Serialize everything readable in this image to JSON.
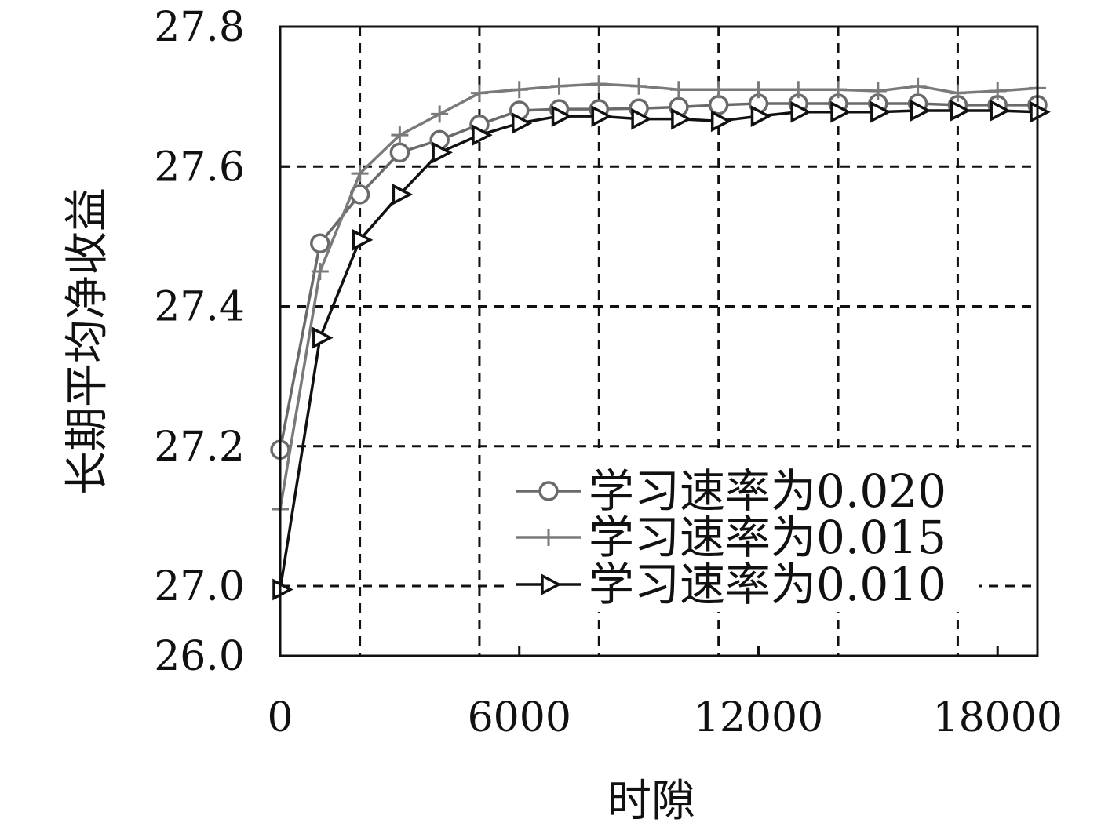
{
  "chart_data": {
    "type": "line",
    "xlabel": "时隙",
    "ylabel": "长期平均净收益",
    "xlim": [
      0,
      19000
    ],
    "x_ticks": [
      0,
      6000,
      12000,
      18000
    ],
    "x_tick_labels": [
      "0",
      "6000",
      "12000",
      "18000"
    ],
    "y_ticks": [
      26.0,
      27.0,
      27.2,
      27.4,
      27.6,
      27.8
    ],
    "y_tick_labels": [
      "26.0",
      "27.0",
      "27.2",
      "27.4",
      "27.6",
      "27.8"
    ],
    "y_axis_break": "between 26.0 and 27.0",
    "x_grid_lines": [
      2000,
      5000,
      8000,
      11000,
      14000,
      17000
    ],
    "grid": true,
    "legend_position": "lower-right",
    "x": [
      0,
      1000,
      2000,
      3000,
      4000,
      5000,
      6000,
      7000,
      8000,
      9000,
      10000,
      11000,
      12000,
      13000,
      14000,
      15000,
      16000,
      17000,
      18000,
      19000
    ],
    "series": [
      {
        "name": "学习速率为0.020",
        "marker": "circle",
        "color": "#6a6a6a",
        "values": [
          27.195,
          27.49,
          27.56,
          27.62,
          27.638,
          27.66,
          27.68,
          27.682,
          27.682,
          27.683,
          27.685,
          27.688,
          27.69,
          27.69,
          27.69,
          27.69,
          27.69,
          27.688,
          27.688,
          27.688
        ]
      },
      {
        "name": "学习速率为0.015",
        "marker": "plus",
        "color": "#7a7a7a",
        "values": [
          27.11,
          27.45,
          27.59,
          27.645,
          27.675,
          27.705,
          27.71,
          27.715,
          27.718,
          27.715,
          27.71,
          27.71,
          27.71,
          27.71,
          27.71,
          27.708,
          27.715,
          27.705,
          27.708,
          27.712
        ]
      },
      {
        "name": "学习速率为0.010",
        "marker": "triangle-right",
        "color": "#111111",
        "values": [
          26.95,
          27.355,
          27.495,
          27.56,
          27.62,
          27.645,
          27.662,
          27.672,
          27.672,
          27.668,
          27.668,
          27.665,
          27.672,
          27.678,
          27.678,
          27.678,
          27.68,
          27.68,
          27.68,
          27.678
        ]
      }
    ]
  }
}
